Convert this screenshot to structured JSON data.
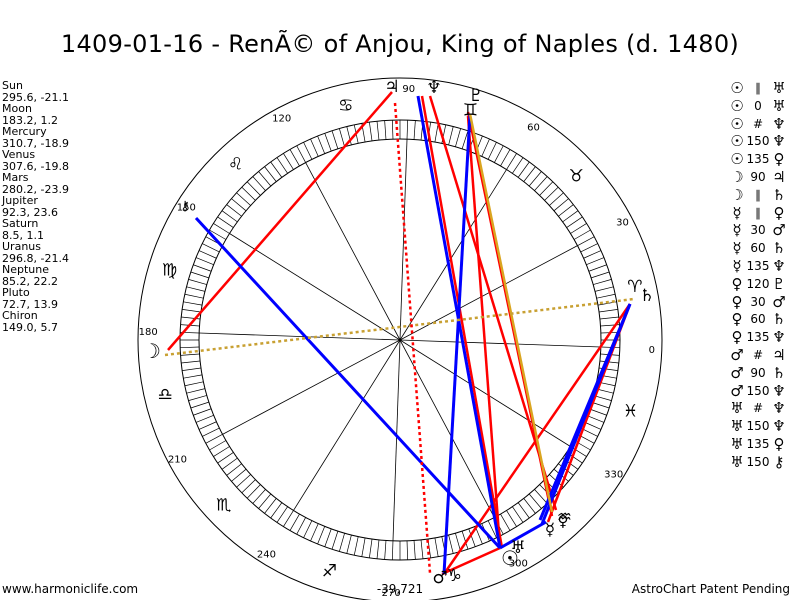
{
  "title": "1409-01-16 - RenÃ© of Anjou, King of Naples (d. 1480)",
  "planets": [
    {
      "name": "Sun",
      "value": "295.6, -21.1"
    },
    {
      "name": "Moon",
      "value": "183.2, 1.2"
    },
    {
      "name": "Mercury",
      "value": "310.7, -18.9"
    },
    {
      "name": "Venus",
      "value": "307.6, -19.8"
    },
    {
      "name": "Mars",
      "value": "280.2, -23.9"
    },
    {
      "name": "Jupiter",
      "value": "92.3, 23.6"
    },
    {
      "name": "Saturn",
      "value": "8.5, 1.1"
    },
    {
      "name": "Uranus",
      "value": "296.8, -21.4"
    },
    {
      "name": "Neptune",
      "value": "85.2, 22.2"
    },
    {
      "name": "Pluto",
      "value": "72.7, 13.9"
    },
    {
      "name": "Chiron",
      "value": "149.0, 5.7"
    }
  ],
  "aspects": [
    {
      "p1": "☉",
      "type": "∥",
      "p2": "♅"
    },
    {
      "p1": "☉",
      "type": "0",
      "p2": "♅"
    },
    {
      "p1": "☉",
      "type": "#",
      "p2": "♆"
    },
    {
      "p1": "☉",
      "type": "150",
      "p2": "♆"
    },
    {
      "p1": "☉",
      "type": "135",
      "p2": "♀"
    },
    {
      "p1": "☽",
      "type": "90",
      "p2": "♃"
    },
    {
      "p1": "☽",
      "type": "∥",
      "p2": "♄"
    },
    {
      "p1": "☿",
      "type": "∥",
      "p2": "♀"
    },
    {
      "p1": "☿",
      "type": "30",
      "p2": "♂"
    },
    {
      "p1": "☿",
      "type": "60",
      "p2": "♄"
    },
    {
      "p1": "☿",
      "type": "135",
      "p2": "♆"
    },
    {
      "p1": "♀",
      "type": "120",
      "p2": "♇"
    },
    {
      "p1": "♀",
      "type": "30",
      "p2": "♂"
    },
    {
      "p1": "♀",
      "type": "60",
      "p2": "♄"
    },
    {
      "p1": "♀",
      "type": "135",
      "p2": "♆"
    },
    {
      "p1": "♂",
      "type": "#",
      "p2": "♃"
    },
    {
      "p1": "♂",
      "type": "90",
      "p2": "♄"
    },
    {
      "p1": "♂",
      "type": "150",
      "p2": "♆"
    },
    {
      "p1": "♅",
      "type": "#",
      "p2": "♆"
    },
    {
      "p1": "♅",
      "type": "150",
      "p2": "♆"
    },
    {
      "p1": "♅",
      "type": "135",
      "p2": "♀"
    },
    {
      "p1": "♅",
      "type": "150",
      "p2": "⚷"
    }
  ],
  "wheel": {
    "degree_labels": [
      "0",
      "30",
      "60",
      "90",
      "120",
      "150",
      "180",
      "210",
      "240",
      "270",
      "300",
      "330"
    ],
    "zodiac_glyphs": [
      "♈",
      "♉",
      "♊",
      "♋",
      "♌",
      "♍",
      "♎",
      "♏",
      "♐",
      "♑",
      "♒",
      "♓"
    ],
    "planet_glyphs": {
      "sun": "☉",
      "moon": "☽",
      "mercury": "☿",
      "venus": "♀",
      "mars": "♂",
      "jupiter": "♃",
      "saturn": "♄",
      "uranus": "♅",
      "neptune": "♆",
      "pluto": "♇",
      "chiron": "⚷"
    },
    "aspect_colors": {
      "hard": "#ff0000",
      "soft": "#0000ff",
      "minor": "#daa520",
      "axis": "#c8a032"
    }
  },
  "footer": {
    "left": "www.harmoniclife.com",
    "center": "-39,721",
    "right": "AstroChart Patent Pending"
  }
}
